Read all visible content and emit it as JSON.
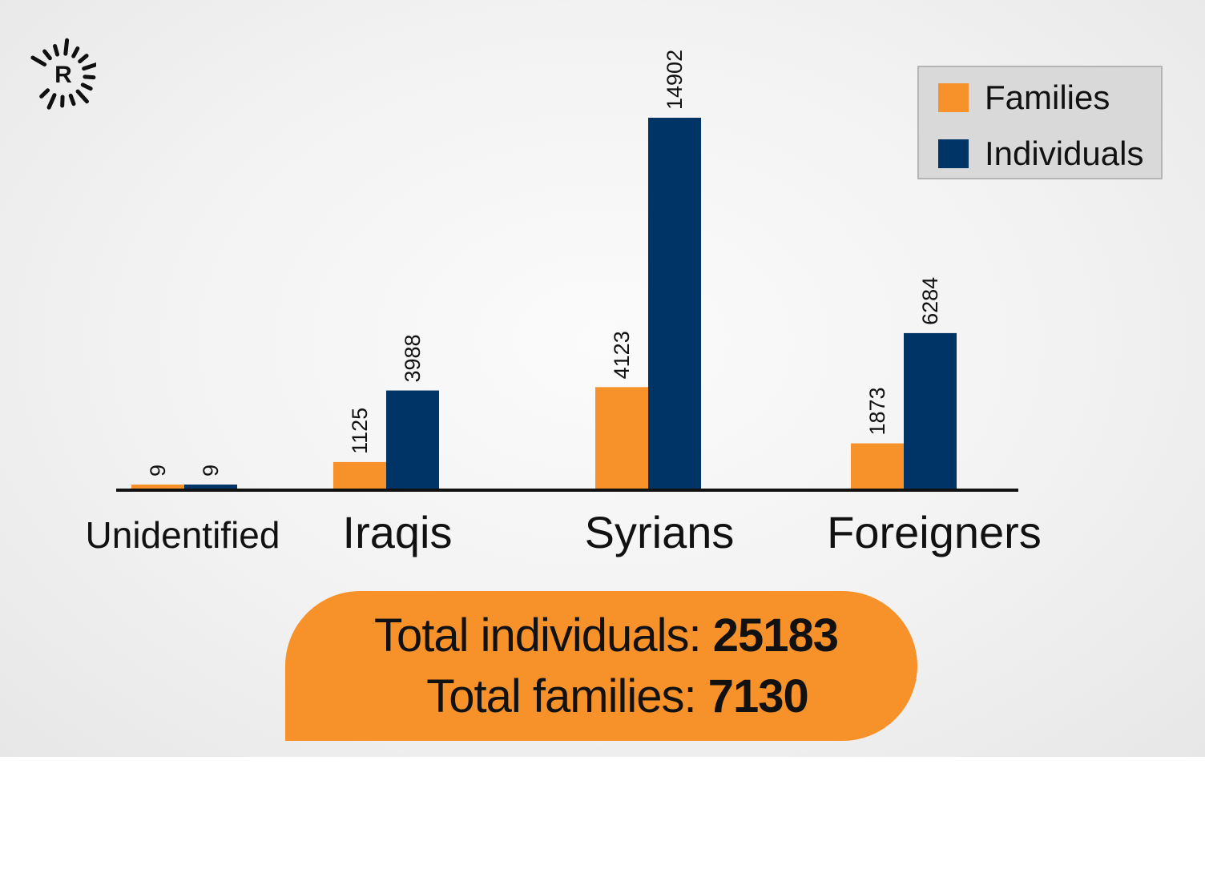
{
  "colors": {
    "families": "#f7922a",
    "individuals": "#003366",
    "axis": "#111111",
    "totals_background": "#f7922a",
    "legend_background": "#d9d9d9"
  },
  "logo": {
    "letter": "R"
  },
  "legend": {
    "placement": "top-right",
    "items": [
      {
        "label": "Families",
        "color": "#f7922a"
      },
      {
        "label": "Individuals",
        "color": "#003366"
      }
    ]
  },
  "totals": {
    "individuals_label": "Total individuals:",
    "individuals_value": "25183",
    "families_label": "Total families:",
    "families_value": "7130"
  },
  "chart_data": {
    "type": "bar",
    "categories": [
      "Unidentified",
      "Iraqis",
      "Syrians",
      "Foreigners"
    ],
    "series": [
      {
        "name": "Families",
        "values": [
          9,
          1125,
          4123,
          1873
        ]
      },
      {
        "name": "Individuals",
        "values": [
          9,
          3988,
          14902,
          6284
        ]
      }
    ],
    "ylim": [
      0,
      15000
    ],
    "grid": false,
    "legend": "top-right",
    "data_labels": "rotated vertical, above bars"
  }
}
